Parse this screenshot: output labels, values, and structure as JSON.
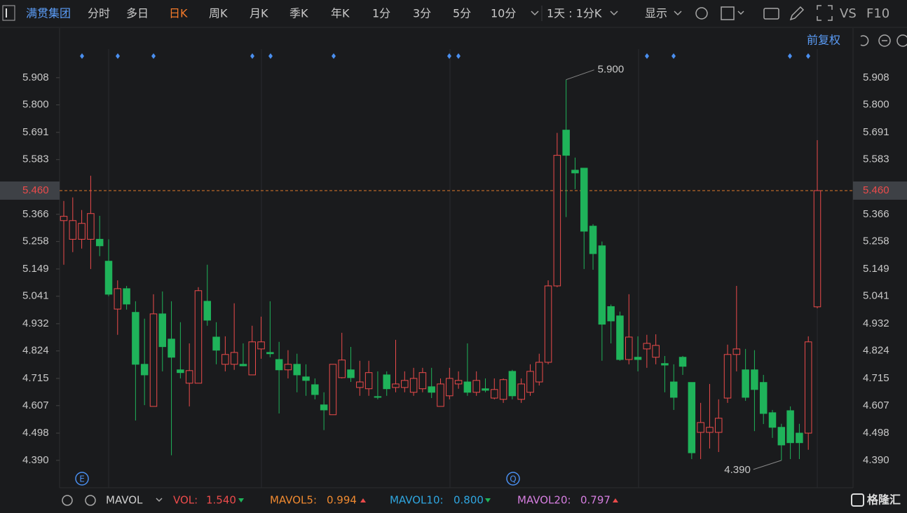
{
  "toolbar": {
    "stock": "满贯集团",
    "periods": [
      "分时",
      "多日",
      "日K",
      "周K",
      "月K",
      "季K",
      "年K",
      "1分",
      "3分",
      "5分",
      "10分"
    ],
    "range": "1天 : 1分K",
    "display": "显示",
    "vs": "VS",
    "f10": "F10",
    "adjust": "前复权"
  },
  "chart_data": {
    "type": "candlestick",
    "open": [
      5.341,
      5.267,
      5.267,
      5.267,
      5.267,
      5.18,
      4.99,
      5.071,
      4.977,
      4.771,
      4.604,
      4.971,
      4.871,
      4.749,
      4.696,
      4.696,
      5.021,
      4.879,
      4.771,
      4.771,
      4.771,
      4.729,
      4.832,
      4.818,
      4.79,
      4.749,
      4.771,
      4.721,
      4.69,
      4.61,
      4.571,
      4.718,
      4.749,
      4.679,
      4.674,
      4.643,
      4.729,
      4.679,
      4.679,
      4.66,
      4.674,
      4.682,
      4.604,
      4.646,
      4.693,
      4.701,
      4.66,
      4.674,
      4.637,
      4.632,
      4.743,
      4.632,
      4.66,
      4.701,
      4.779,
      5.082,
      5.7,
      5.541,
      5.549,
      5.319,
      5.241,
      5.0,
      4.963,
      4.79,
      4.799,
      4.832,
      4.799,
      4.774,
      4.701,
      4.799,
      4.699,
      4.501,
      4.501,
      4.501,
      4.637,
      4.81,
      4.749,
      4.749,
      4.699,
      4.579,
      4.521,
      4.587,
      4.498,
      4.498,
      4.999
    ],
    "high": [
      5.419,
      5.433,
      5.383,
      5.519,
      5.36,
      5.267,
      5.104,
      5.082,
      5.021,
      4.952,
      5.049,
      5.06,
      5.021,
      4.938,
      4.854,
      5.077,
      5.166,
      4.938,
      4.882,
      5.013,
      4.854,
      4.924,
      4.96,
      5.021,
      4.86,
      4.827,
      4.813,
      4.771,
      4.715,
      4.66,
      4.771,
      4.896,
      4.84,
      4.785,
      4.785,
      4.743,
      4.743,
      4.868,
      4.743,
      4.757,
      4.757,
      4.757,
      4.715,
      4.757,
      4.743,
      4.854,
      4.743,
      4.715,
      4.715,
      4.715,
      4.749,
      4.715,
      4.771,
      4.813,
      5.104,
      5.689,
      5.9,
      5.591,
      5.549,
      5.327,
      5.258,
      5.008,
      4.98,
      5.049,
      4.882,
      4.888,
      4.89,
      4.804,
      4.771,
      4.804,
      4.699,
      4.618,
      4.693,
      4.632,
      4.849,
      5.082,
      4.832,
      4.827,
      4.729,
      4.59,
      4.535,
      4.604,
      4.535,
      4.882,
      5.66
    ],
    "low": [
      5.166,
      5.216,
      5.23,
      5.149,
      5.2,
      5.041,
      4.888,
      4.988,
      4.548,
      4.609,
      4.604,
      4.743,
      4.41,
      4.715,
      4.604,
      4.696,
      4.924,
      4.771,
      4.743,
      4.749,
      4.763,
      4.729,
      4.793,
      4.799,
      4.576,
      4.715,
      4.66,
      4.646,
      4.632,
      4.51,
      4.571,
      4.715,
      4.701,
      4.646,
      4.646,
      4.632,
      4.646,
      4.66,
      4.66,
      4.646,
      4.66,
      4.637,
      4.604,
      4.632,
      4.674,
      4.646,
      4.646,
      4.66,
      4.632,
      4.618,
      4.632,
      4.618,
      4.646,
      4.687,
      4.771,
      5.077,
      5.355,
      5.466,
      5.149,
      5.146,
      4.785,
      4.854,
      4.785,
      4.771,
      4.743,
      4.757,
      4.771,
      4.66,
      4.59,
      4.729,
      4.395,
      4.395,
      4.437,
      4.423,
      4.618,
      4.743,
      4.626,
      4.506,
      4.534,
      4.479,
      4.39,
      4.395,
      4.395,
      4.432,
      4.993
    ],
    "close": [
      5.358,
      5.341,
      5.33,
      5.369,
      5.241,
      5.049,
      5.071,
      5.01,
      4.771,
      4.729,
      4.971,
      4.841,
      4.799,
      4.738,
      4.746,
      5.063,
      4.946,
      4.827,
      4.81,
      4.818,
      4.765,
      4.86,
      4.86,
      4.813,
      4.749,
      4.771,
      4.729,
      4.707,
      4.651,
      4.59,
      4.771,
      4.788,
      4.718,
      4.701,
      4.738,
      4.64,
      4.674,
      4.693,
      4.707,
      4.715,
      4.738,
      4.66,
      4.693,
      4.715,
      4.707,
      4.66,
      4.707,
      4.668,
      4.671,
      4.71,
      4.646,
      4.693,
      4.743,
      4.779,
      5.082,
      5.6,
      5.6,
      5.53,
      5.299,
      5.21,
      4.93,
      4.943,
      4.79,
      4.879,
      4.79,
      4.854,
      4.846,
      4.768,
      4.64,
      4.763,
      4.42,
      4.54,
      4.521,
      4.557,
      4.81,
      4.832,
      4.64,
      4.671,
      4.576,
      4.521,
      4.451,
      4.46,
      4.46,
      4.86,
      5.46
    ],
    "up_color": "#ec4b4b",
    "down_color": "#1fb35a",
    "ylim": [
      4.284,
      6.091
    ],
    "yticks": [
      {
        "value": 4.39,
        "label": "4.390"
      },
      4.498,
      4.607,
      4.715,
      4.824,
      4.932,
      5.041,
      5.149,
      5.258,
      5.366,
      5.583,
      5.691,
      {
        "value": 5.8,
        "label": "5.800"
      },
      5.908
    ],
    "current_price": {
      "value": 5.46,
      "label": "5.460"
    },
    "annotations": [
      {
        "value": 5.9,
        "label": "5.900"
      },
      {
        "value": 4.39,
        "label": "4.390"
      }
    ],
    "markers": [
      "E",
      "Q"
    ]
  },
  "footer": {
    "indicator": "MAVOL",
    "items": [
      {
        "name": "VOL:",
        "value": "1.540",
        "color": "#ec4b4b"
      },
      {
        "name": "MAVOL5:",
        "value": "0.994",
        "color": "#f08a30"
      },
      {
        "name": "MAVOL10:",
        "value": "0.800",
        "color": "#2fa6e0"
      },
      {
        "name": "MAVOL20:",
        "value": "0.797",
        "color": "#d67ee0"
      }
    ],
    "brand": "格隆汇"
  }
}
